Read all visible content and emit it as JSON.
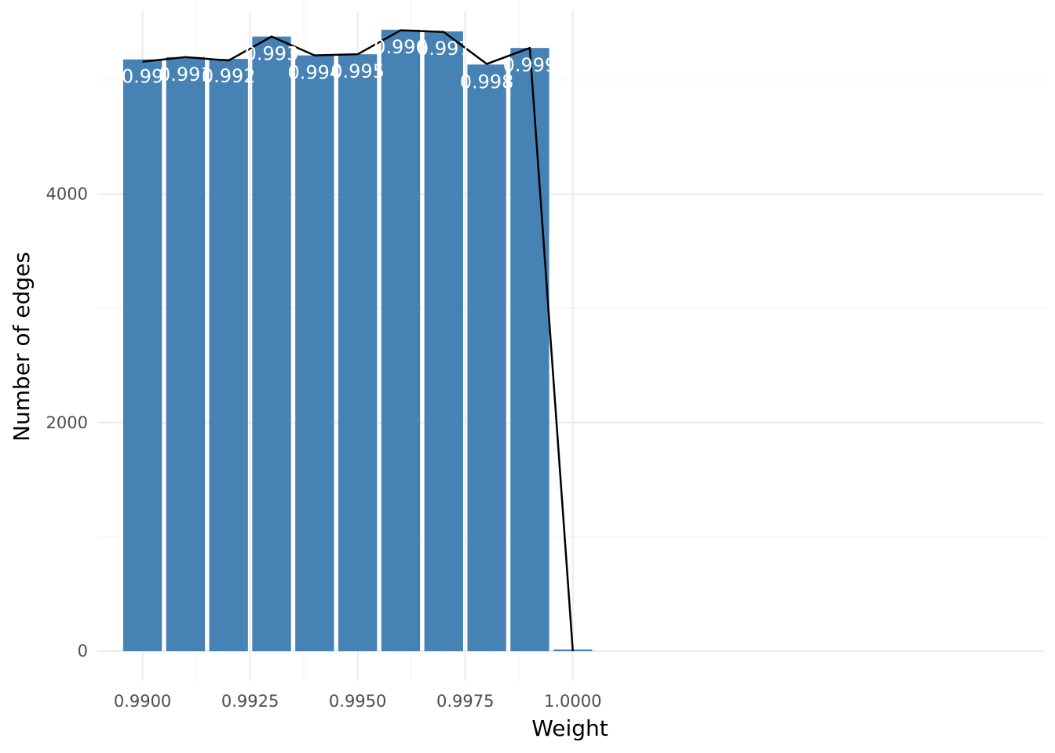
{
  "chart_data": {
    "type": "bar",
    "title": "",
    "xlabel": "Weight",
    "ylabel": "Number of edges",
    "x": [
      0.99,
      0.991,
      0.992,
      0.993,
      0.994,
      0.995,
      0.996,
      0.997,
      0.998,
      0.999,
      1.0
    ],
    "values": [
      5180,
      5200,
      5185,
      5380,
      5215,
      5225,
      5440,
      5425,
      5135,
      5280,
      14
    ],
    "bar_labels": [
      "0.99",
      "0.991",
      "0.992",
      "0.993",
      "0.994",
      "0.995",
      "0.996",
      "0.997",
      "0.998",
      "0.999",
      ""
    ],
    "line_values": [
      5160,
      5200,
      5170,
      5380,
      5215,
      5225,
      5435,
      5420,
      5140,
      5280,
      0
    ],
    "xlim": [
      0.98895,
      1.01095
    ],
    "ylim": [
      -260,
      5700
    ],
    "xticks": [
      0.99,
      0.9925,
      0.995,
      0.9975,
      1.0
    ],
    "xtick_labels": [
      "0.9900",
      "0.9925",
      "0.9950",
      "0.9975",
      "1.0000"
    ],
    "yticks": [
      0,
      2000,
      4000
    ],
    "ytick_labels": [
      "0",
      "2000",
      "4000"
    ],
    "bar_width": 0.0009,
    "grid": true,
    "legend": "none",
    "colors": {
      "bar": "#4682b4",
      "line": "#000000",
      "bar_label": "#ffffff",
      "grid_major": "#ebebeb",
      "grid_minor": "#f3f3f3",
      "tick_label": "#4d4d4d"
    }
  }
}
